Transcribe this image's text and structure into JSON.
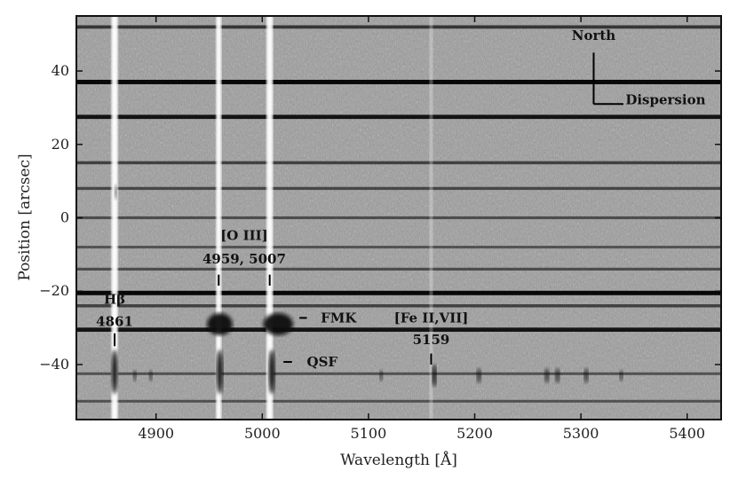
{
  "chart_data": {
    "type": "heatmap",
    "title": "",
    "xlabel": "Wavelength [Å]",
    "ylabel": "Position [arcsec]",
    "xlim": [
      4825,
      5432
    ],
    "ylim": [
      -55,
      55
    ],
    "x_ticks": [
      4900,
      5000,
      5100,
      5200,
      5300,
      5400
    ],
    "y_ticks": [
      -40,
      -20,
      0,
      20,
      40
    ],
    "colormap": "gray_r",
    "grid": false,
    "legend": "none",
    "sky_lines": [
      {
        "x": 4861,
        "width": 6
      },
      {
        "x": 4959,
        "width": 5
      },
      {
        "x": 5007,
        "width": 6
      },
      {
        "x": 5159,
        "width": 3
      }
    ],
    "spatial_bands": [
      {
        "y": 52,
        "strength": 0.6
      },
      {
        "y": 37,
        "strength": 1.0
      },
      {
        "y": 27.5,
        "strength": 0.9
      },
      {
        "y": 15,
        "strength": 0.5
      },
      {
        "y": 8,
        "strength": 0.45
      },
      {
        "y": 0,
        "strength": 0.4
      },
      {
        "y": -8,
        "strength": 0.35
      },
      {
        "y": -14,
        "strength": 0.4
      },
      {
        "y": -20.5,
        "strength": 1.0
      },
      {
        "y": -24,
        "strength": 0.5
      },
      {
        "y": -30.5,
        "strength": 0.9
      },
      {
        "y": -42.5,
        "strength": 0.35
      },
      {
        "y": -50,
        "strength": 0.35
      }
    ],
    "emission_blobs": [
      {
        "x": 4861,
        "y": -42,
        "dx": 3,
        "dy": 6,
        "name": "hbeta-qsf"
      },
      {
        "x": 4960,
        "y": -42,
        "dx": 3,
        "dy": 6,
        "name": "oiii4959-qsf"
      },
      {
        "x": 5009,
        "y": -42,
        "dx": 3,
        "dy": 6,
        "name": "oiii5007-qsf"
      },
      {
        "x": 4960,
        "y": -29,
        "dx": 12,
        "dy": 3,
        "name": "oiii4959-fmk"
      },
      {
        "x": 5015,
        "y": -29,
        "dx": 14,
        "dy": 3,
        "name": "oiii5007-fmk"
      },
      {
        "x": 5162,
        "y": -43,
        "dx": 2,
        "dy": 3,
        "name": "feii-5159"
      },
      {
        "x": 5204,
        "y": -43,
        "dx": 2,
        "dy": 2,
        "name": "line-5204"
      },
      {
        "x": 5268,
        "y": -43,
        "dx": 2,
        "dy": 2,
        "name": "line-5268"
      },
      {
        "x": 5278,
        "y": -43,
        "dx": 2,
        "dy": 2,
        "name": "line-5278"
      },
      {
        "x": 5305,
        "y": -43,
        "dx": 2,
        "dy": 2,
        "name": "line-5305"
      },
      {
        "x": 5338,
        "y": -43,
        "dx": 1.5,
        "dy": 1.5,
        "name": "line-5338"
      },
      {
        "x": 4880,
        "y": -43,
        "dx": 1.5,
        "dy": 1.5,
        "name": "line-4880"
      },
      {
        "x": 4895,
        "y": -43,
        "dx": 1.5,
        "dy": 1.5,
        "name": "line-4895"
      },
      {
        "x": 5112,
        "y": -43,
        "dx": 1.5,
        "dy": 1.5,
        "name": "line-5112"
      },
      {
        "x": 4862,
        "y": 7,
        "dx": 1,
        "dy": 2,
        "name": "hbeta-north"
      }
    ],
    "annotations": [
      {
        "id": "hbeta",
        "lines": [
          "Hβ",
          "4861"
        ],
        "x": 4861,
        "tick_y1": -31.5,
        "tick_y2": -35,
        "text_y": [
          -23.5,
          -29.5
        ]
      },
      {
        "id": "oiii",
        "lines": [
          "[O III]",
          "4959, 5007"
        ],
        "x": 4983,
        "ticks": [
          {
            "x": 4959,
            "y1": -15.5,
            "y2": -18.5
          },
          {
            "x": 5007,
            "y1": -15.5,
            "y2": -18.5
          }
        ],
        "text_y": [
          -6,
          -12.5
        ]
      },
      {
        "id": "feii",
        "lines": [
          "[Fe II,VII]",
          "5159"
        ],
        "x": 5159,
        "tick_y1": -37,
        "tick_y2": -40,
        "text_y": [
          -28.5,
          -34.5
        ]
      },
      {
        "id": "fmk",
        "lines": [
          "FMK"
        ],
        "x": 5055,
        "y": -28.5,
        "dash_x1": 5035,
        "dash_x2": 5042
      },
      {
        "id": "qsf",
        "lines": [
          "QSF"
        ],
        "x": 5042,
        "y": -40.5,
        "dash_x1": 5020,
        "dash_x2": 5028
      },
      {
        "id": "north",
        "lines": [
          "North"
        ],
        "x": 5312,
        "y": 48.5
      },
      {
        "id": "dispersion",
        "lines": [
          "Dispersion"
        ],
        "x": 5342,
        "y": 31
      }
    ],
    "compass": {
      "origin": [
        5312,
        31
      ],
      "north_end": [
        5312,
        45
      ],
      "dispersion_end": [
        5340,
        31
      ]
    }
  }
}
